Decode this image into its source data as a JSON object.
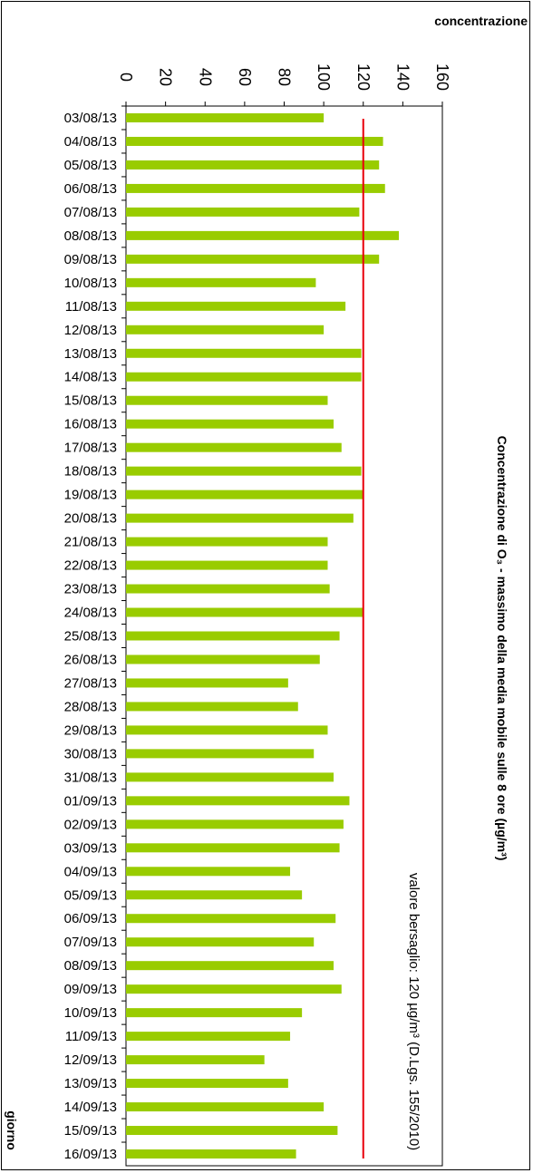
{
  "chart_data": {
    "type": "bar",
    "orientation": "horizontal",
    "title": "Concentrazione di O₃ - massimo della media mobile sulle 8 ore (µg/m³)",
    "xlabel": "giorno",
    "ylabel": "concentrazione",
    "ylim": [
      0,
      160
    ],
    "yticks": [
      0,
      20,
      40,
      60,
      80,
      100,
      120,
      140,
      160
    ],
    "grid": false,
    "bar_color": "#99cc00",
    "target_line": {
      "value": 120,
      "color": "#e8000b",
      "label": "valore bersaglio: 120 µg/m³ (D.Lgs. 155/2010)"
    },
    "categories": [
      "03/08/13",
      "04/08/13",
      "05/08/13",
      "06/08/13",
      "07/08/13",
      "08/08/13",
      "09/08/13",
      "10/08/13",
      "11/08/13",
      "12/08/13",
      "13/08/13",
      "14/08/13",
      "15/08/13",
      "16/08/13",
      "17/08/13",
      "18/08/13",
      "19/08/13",
      "20/08/13",
      "21/08/13",
      "22/08/13",
      "23/08/13",
      "24/08/13",
      "25/08/13",
      "26/08/13",
      "27/08/13",
      "28/08/13",
      "29/08/13",
      "30/08/13",
      "31/08/13",
      "01/09/13",
      "02/09/13",
      "03/09/13",
      "04/09/13",
      "05/09/13",
      "06/09/13",
      "07/09/13",
      "08/09/13",
      "09/09/13",
      "10/09/13",
      "11/09/13",
      "12/09/13",
      "13/09/13",
      "14/09/13",
      "15/09/13",
      "16/09/13"
    ],
    "values": [
      100,
      130,
      128,
      131,
      118,
      138,
      128,
      96,
      111,
      100,
      119,
      119,
      102,
      105,
      109,
      119,
      120,
      115,
      102,
      102,
      103,
      120,
      108,
      98,
      82,
      87,
      102,
      95,
      105,
      113,
      110,
      108,
      83,
      89,
      106,
      95,
      105,
      109,
      89,
      83,
      70,
      82,
      100,
      107,
      86
    ]
  }
}
